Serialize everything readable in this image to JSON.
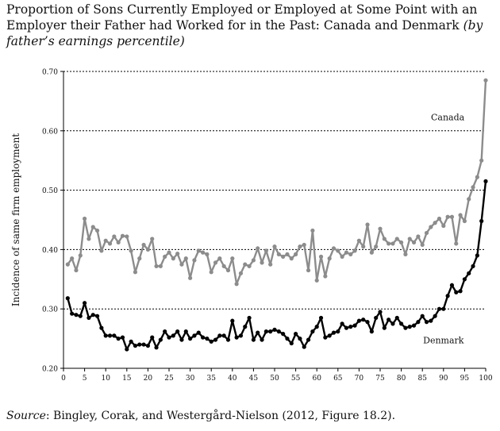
{
  "title": {
    "main": "Proportion of Sons Currently Employed or Employed at Some Point with an Employer their Father had Worked for in the Past: Canada and Denmark",
    "subtitle": "(by father’s earnings percentile)"
  },
  "source": {
    "label": "Source",
    "text": ": Bingley, Corak, and Westergård-Nielson (2012, Figure 18.2)."
  },
  "chart_data": {
    "type": "line",
    "xlabel": "",
    "ylabel": "Incidence of same firm employment",
    "xlim": [
      0,
      100
    ],
    "ylim": [
      0.2,
      0.7
    ],
    "xticks": [
      0,
      5,
      10,
      15,
      20,
      25,
      30,
      35,
      40,
      45,
      50,
      55,
      60,
      65,
      70,
      75,
      80,
      85,
      90,
      95,
      100
    ],
    "yticks": [
      0.2,
      0.3,
      0.4,
      0.5,
      0.6,
      0.7
    ],
    "ytick_labels": [
      "0.20",
      "0.30",
      "0.40",
      "0.50",
      "0.60",
      "0.70"
    ],
    "gridlines": "dotted horizontal at 0.30, 0.40, 0.50, 0.60, 0.70",
    "annotations": [
      {
        "text": "Canada",
        "x": 91,
        "y": 0.618
      },
      {
        "text": "Denmark",
        "x": 90,
        "y": 0.242
      }
    ],
    "series": [
      {
        "name": "Canada",
        "color": "#8c8c8c",
        "x": [
          1,
          2,
          3,
          4,
          5,
          6,
          7,
          8,
          9,
          10,
          11,
          12,
          13,
          14,
          15,
          16,
          17,
          18,
          19,
          20,
          21,
          22,
          23,
          24,
          25,
          26,
          27,
          28,
          29,
          30,
          31,
          32,
          33,
          34,
          35,
          36,
          37,
          38,
          39,
          40,
          41,
          42,
          43,
          44,
          45,
          46,
          47,
          48,
          49,
          50,
          51,
          52,
          53,
          54,
          55,
          56,
          57,
          58,
          59,
          60,
          61,
          62,
          63,
          64,
          65,
          66,
          67,
          68,
          69,
          70,
          71,
          72,
          73,
          74,
          75,
          76,
          77,
          78,
          79,
          80,
          81,
          82,
          83,
          84,
          85,
          86,
          87,
          88,
          89,
          90,
          91,
          92,
          93,
          94,
          95,
          96,
          97,
          98,
          99,
          100
        ],
        "values": [
          0.375,
          0.385,
          0.365,
          0.39,
          0.452,
          0.418,
          0.438,
          0.432,
          0.398,
          0.415,
          0.41,
          0.422,
          0.412,
          0.423,
          0.422,
          0.398,
          0.362,
          0.385,
          0.408,
          0.4,
          0.418,
          0.372,
          0.372,
          0.388,
          0.395,
          0.385,
          0.393,
          0.375,
          0.385,
          0.352,
          0.382,
          0.398,
          0.395,
          0.392,
          0.362,
          0.378,
          0.385,
          0.372,
          0.365,
          0.385,
          0.342,
          0.36,
          0.375,
          0.372,
          0.382,
          0.402,
          0.378,
          0.398,
          0.375,
          0.405,
          0.392,
          0.388,
          0.392,
          0.385,
          0.392,
          0.405,
          0.408,
          0.365,
          0.432,
          0.348,
          0.388,
          0.355,
          0.385,
          0.402,
          0.398,
          0.388,
          0.395,
          0.392,
          0.398,
          0.415,
          0.405,
          0.442,
          0.395,
          0.405,
          0.435,
          0.418,
          0.41,
          0.41,
          0.418,
          0.412,
          0.392,
          0.418,
          0.412,
          0.422,
          0.408,
          0.428,
          0.438,
          0.445,
          0.452,
          0.44,
          0.455,
          0.455,
          0.41,
          0.458,
          0.448,
          0.485,
          0.505,
          0.522,
          0.55,
          0.685
        ]
      },
      {
        "name": "Denmark",
        "color": "#000000",
        "x": [
          1,
          2,
          3,
          4,
          5,
          6,
          7,
          8,
          9,
          10,
          11,
          12,
          13,
          14,
          15,
          16,
          17,
          18,
          19,
          20,
          21,
          22,
          23,
          24,
          25,
          26,
          27,
          28,
          29,
          30,
          31,
          32,
          33,
          34,
          35,
          36,
          37,
          38,
          39,
          40,
          41,
          42,
          43,
          44,
          45,
          46,
          47,
          48,
          49,
          50,
          51,
          52,
          53,
          54,
          55,
          56,
          57,
          58,
          59,
          60,
          61,
          62,
          63,
          64,
          65,
          66,
          67,
          68,
          69,
          70,
          71,
          72,
          73,
          74,
          75,
          76,
          77,
          78,
          79,
          80,
          81,
          82,
          83,
          84,
          85,
          86,
          87,
          88,
          89,
          90,
          91,
          92,
          93,
          94,
          95,
          96,
          97,
          98,
          99,
          100
        ],
        "values": [
          0.318,
          0.292,
          0.29,
          0.288,
          0.31,
          0.285,
          0.29,
          0.288,
          0.268,
          0.255,
          0.255,
          0.255,
          0.25,
          0.252,
          0.232,
          0.245,
          0.238,
          0.24,
          0.24,
          0.238,
          0.252,
          0.235,
          0.248,
          0.262,
          0.252,
          0.255,
          0.262,
          0.248,
          0.262,
          0.25,
          0.255,
          0.26,
          0.252,
          0.25,
          0.245,
          0.248,
          0.255,
          0.255,
          0.248,
          0.28,
          0.252,
          0.255,
          0.27,
          0.285,
          0.248,
          0.26,
          0.248,
          0.262,
          0.262,
          0.265,
          0.262,
          0.258,
          0.25,
          0.242,
          0.258,
          0.25,
          0.236,
          0.248,
          0.262,
          0.27,
          0.285,
          0.252,
          0.255,
          0.26,
          0.262,
          0.275,
          0.268,
          0.27,
          0.272,
          0.28,
          0.282,
          0.278,
          0.262,
          0.285,
          0.295,
          0.268,
          0.282,
          0.275,
          0.285,
          0.275,
          0.268,
          0.27,
          0.272,
          0.278,
          0.288,
          0.278,
          0.28,
          0.288,
          0.3,
          0.3,
          0.322,
          0.34,
          0.328,
          0.33,
          0.35,
          0.36,
          0.372,
          0.39,
          0.448,
          0.515
        ]
      }
    ]
  }
}
